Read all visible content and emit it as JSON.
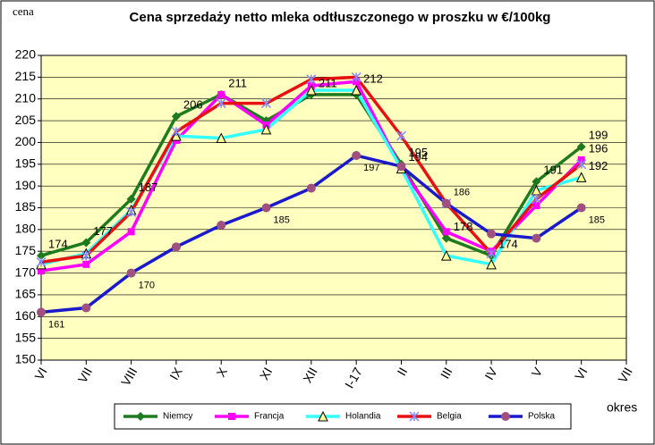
{
  "chart_data": {
    "type": "line",
    "title": "Cena sprzedaży netto mleka odtłuszczonego w proszku w €/100kg",
    "y_label": "cena",
    "x_label": "okres",
    "categories": [
      "VI",
      "VII",
      "VIII",
      "IX",
      "X",
      "XI",
      "XII",
      "I-17",
      "II",
      "III",
      "IV",
      "V",
      "VI",
      "VII"
    ],
    "ylim": [
      150,
      220
    ],
    "yticks": [
      150,
      155,
      160,
      165,
      170,
      175,
      180,
      185,
      190,
      195,
      200,
      205,
      210,
      215,
      220
    ],
    "grid": true,
    "legend": "bottom",
    "series": [
      {
        "name": "Niemcy",
        "color": "#1e7a1e",
        "marker": "diamond",
        "values": [
          174,
          177,
          187,
          206,
          211,
          205,
          211,
          211,
          195,
          178,
          174,
          191,
          199,
          null
        ],
        "value_labels": [
          "174",
          "177",
          "187",
          "206",
          "211",
          null,
          "211",
          null,
          "195",
          "178",
          "174",
          "191",
          "199",
          null
        ]
      },
      {
        "name": "Francja",
        "color": "#ff00ff",
        "marker": "square",
        "values": [
          170.5,
          172,
          179.5,
          200.5,
          211,
          204,
          213,
          214,
          194,
          179.5,
          175,
          185.5,
          196,
          null
        ],
        "value_labels": [
          null,
          null,
          null,
          null,
          null,
          null,
          null,
          null,
          null,
          null,
          null,
          null,
          "196",
          null
        ]
      },
      {
        "name": "Holandia",
        "color": "#33ffff",
        "marker": "triangle",
        "values": [
          172,
          174.5,
          184.5,
          201.5,
          201,
          203,
          212,
          212,
          194,
          174,
          172,
          189,
          192,
          null
        ],
        "value_labels": [
          null,
          null,
          null,
          null,
          null,
          null,
          null,
          "212",
          "194",
          null,
          null,
          null,
          "192",
          null
        ]
      },
      {
        "name": "Belgia",
        "color": "#e81010",
        "marker": "x",
        "values": [
          172.5,
          174,
          184,
          202.5,
          209,
          209,
          214.5,
          215,
          201.5,
          186,
          174.5,
          187,
          195,
          null
        ],
        "value_labels": [
          null,
          null,
          null,
          null,
          null,
          null,
          null,
          null,
          null,
          "186",
          null,
          null,
          null,
          null
        ]
      },
      {
        "name": "Polska",
        "color": "#1a1acc",
        "marker": "circle",
        "values": [
          161,
          162,
          170,
          176,
          181,
          185,
          189.5,
          197,
          194.5,
          186,
          179,
          178,
          185,
          null
        ],
        "value_labels": [
          "161",
          null,
          "170",
          null,
          null,
          "185",
          null,
          "197",
          null,
          null,
          null,
          null,
          "185",
          null
        ]
      }
    ]
  }
}
